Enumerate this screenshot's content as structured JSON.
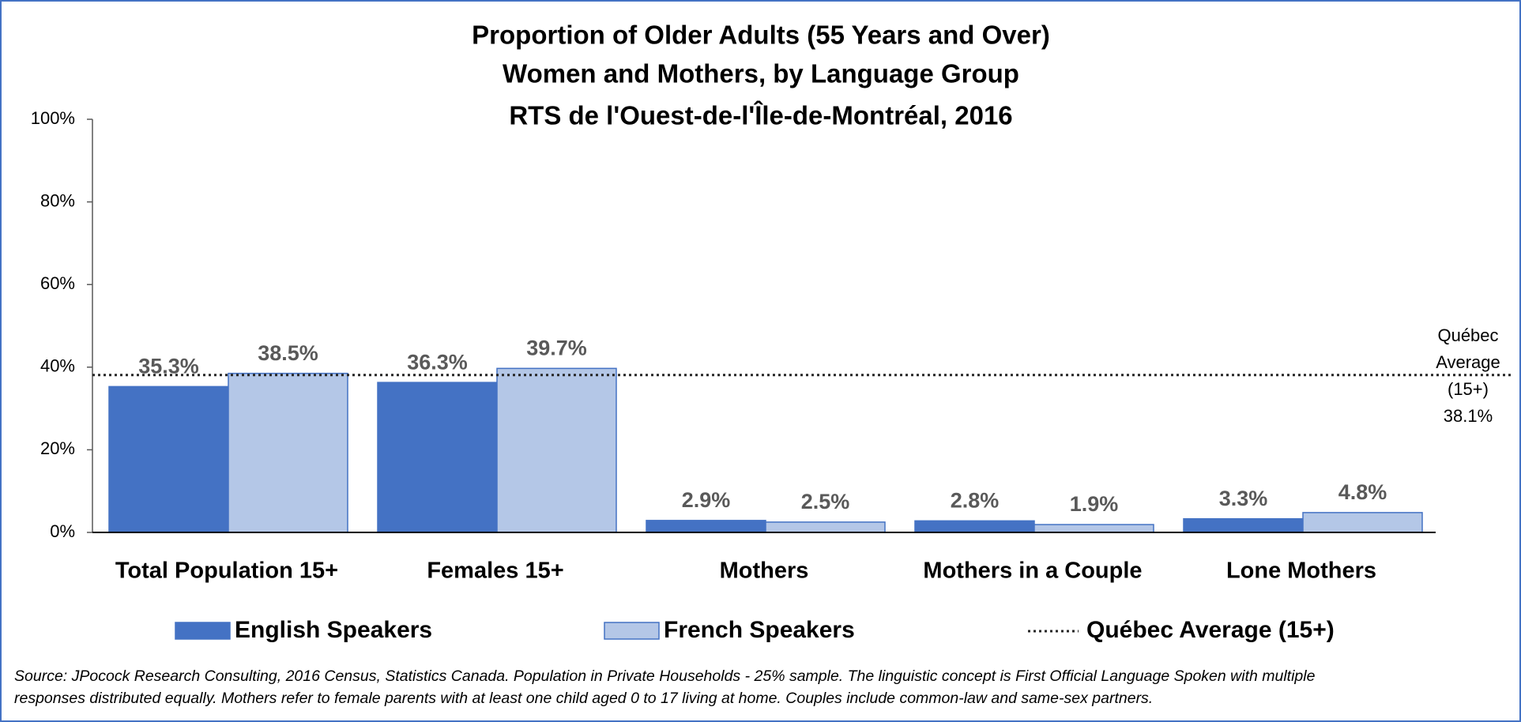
{
  "chart_data": {
    "type": "bar",
    "title": [
      "Proportion of Older Adults (55 Years and Over)",
      "Women and Mothers, by Language Group",
      "RTS de l'Ouest-de-l'Île-de-Montréal, 2016"
    ],
    "categories": [
      "Total Population 15+",
      "Females 15+",
      "Mothers",
      "Mothers in a Couple",
      "Lone Mothers"
    ],
    "series": [
      {
        "name": "English Speakers",
        "color": "#4472c4",
        "values": [
          35.3,
          36.3,
          2.9,
          2.8,
          3.3
        ],
        "value_labels": [
          "35.3%",
          "36.3%",
          "2.9%",
          "2.8%",
          "3.3%"
        ]
      },
      {
        "name": "French Speakers",
        "color": "#b4c7e7",
        "values": [
          38.5,
          39.7,
          2.5,
          1.9,
          4.8
        ],
        "value_labels": [
          "38.5%",
          "39.7%",
          "2.5%",
          "1.9%",
          "4.8%"
        ]
      }
    ],
    "reference_line": {
      "name": "Québec Average (15+)",
      "value": 38.1,
      "annotation": [
        "Québec",
        "Average",
        "(15+)"
      ],
      "value_label": "38.1%"
    },
    "ylim": [
      0,
      100
    ],
    "yticks": [
      {
        "value": 0,
        "label": "0%"
      },
      {
        "value": 20,
        "label": "20%"
      },
      {
        "value": 40,
        "label": "40%"
      },
      {
        "value": 60,
        "label": "60%"
      },
      {
        "value": 80,
        "label": "80%"
      },
      {
        "value": 100,
        "label": "100%"
      }
    ],
    "grid": false,
    "legend": "bottom",
    "source": [
      "Source: JPocock Research Consulting, 2016 Census, Statistics Canada. Population in Private Households - 25% sample. The linguistic concept is First Official Language Spoken with multiple",
      "responses distributed equally. Mothers refer to female parents with at least one child aged 0 to 17 living at home. Couples include common-law and same-sex partners."
    ]
  }
}
